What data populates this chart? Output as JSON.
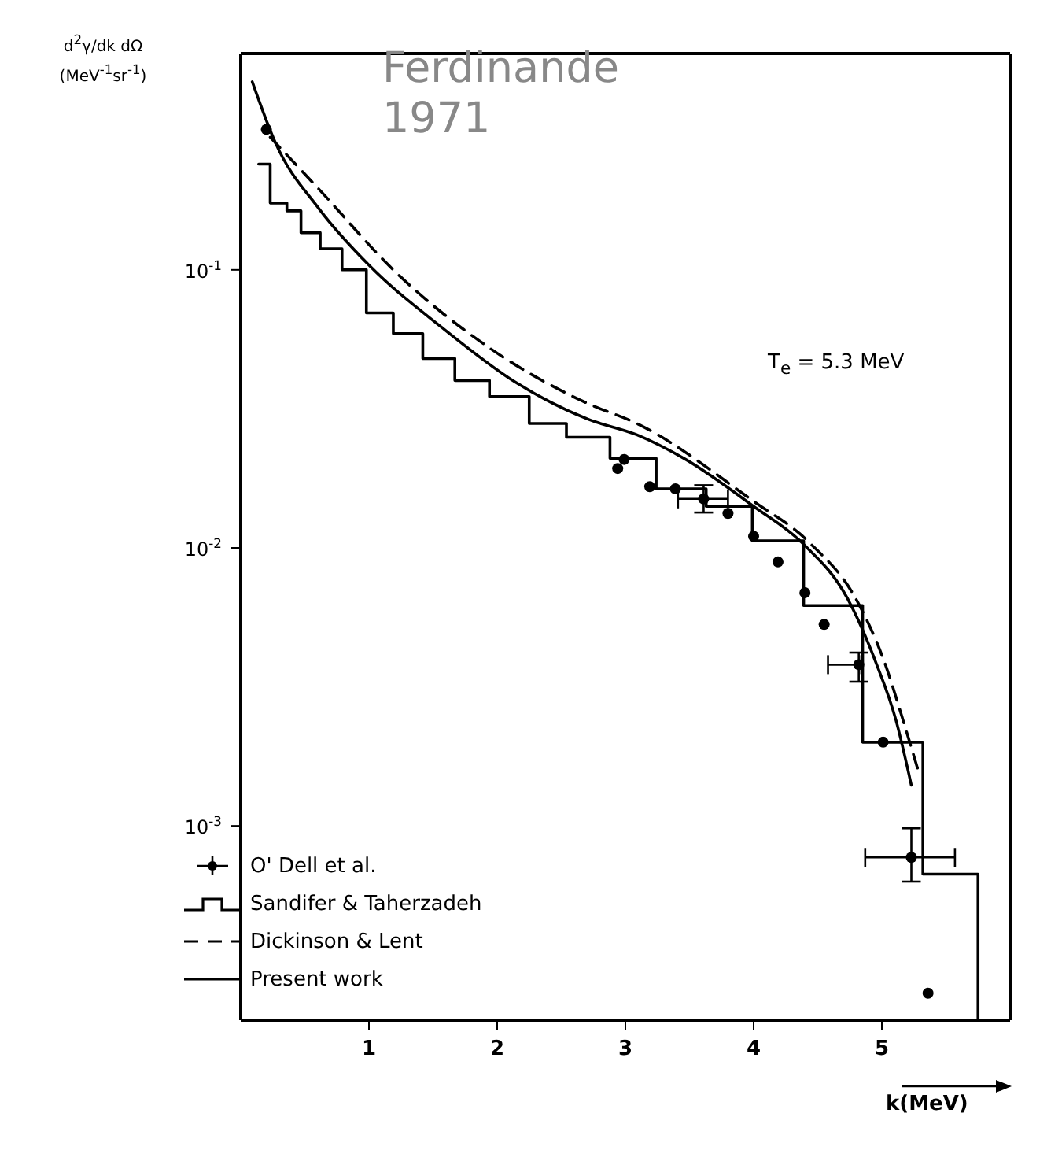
{
  "chart_data": {
    "type": "line",
    "xlabel": "k(MeV)",
    "ylabel": "d$^{2}$γ/dk dΩ (MeV$^{-1}$sr$^{-1}$)",
    "annotations": [
      "Ferdinande 1971",
      "T$_{e}$ = 5.3 MeV"
    ],
    "xlim": [
      0,
      6
    ],
    "xticks": [
      1,
      2,
      3,
      4,
      5
    ],
    "ylim": [
      0.0002,
      0.6
    ],
    "yticks": [
      {
        "value": 0.001,
        "label": "10$^{-3}$"
      },
      {
        "value": 0.01,
        "label": "10$^{-2}$"
      },
      {
        "value": 0.1,
        "label": "10$^{-1}$"
      }
    ],
    "log": "y",
    "legend": "bottom left",
    "series": [
      {
        "name": "O' Dell et al.",
        "type": "scatter",
        "color": "#000000",
        "marker": "circle",
        "x": [
          0.2,
          2.94,
          2.99,
          3.19,
          3.39,
          3.61,
          3.8,
          4.0,
          4.19,
          4.4,
          4.55,
          4.82,
          5.01,
          5.23,
          5.36
        ],
        "values": [
          0.32,
          0.0193,
          0.0208,
          0.0166,
          0.0163,
          0.015,
          0.0133,
          0.011,
          0.0089,
          0.0069,
          0.0053,
          0.0038,
          0.002,
          0.00077,
          0.00025
        ],
        "errors": [
          null,
          null,
          null,
          null,
          null,
          [
            0.0134,
            0.0168
          ],
          null,
          null,
          null,
          null,
          null,
          [
            0.0033,
            0.0042
          ],
          null,
          [
            0.00063,
            0.00098
          ],
          null
        ],
        "xerrors": [
          null,
          null,
          null,
          null,
          null,
          [
            3.41,
            3.8
          ],
          null,
          null,
          null,
          null,
          null,
          [
            4.58,
            4.84
          ],
          null,
          [
            4.87,
            5.57
          ],
          null
        ]
      },
      {
        "name": "Sandifer &  Taherzadeh",
        "type": "step",
        "color": "#000000",
        "marker": "none",
        "line_style": "solid",
        "x": [
          0.14,
          0.23,
          0.36,
          0.47,
          0.62,
          0.79,
          0.98,
          1.19,
          1.42,
          1.67,
          1.94,
          2.25,
          2.54,
          2.88,
          3.24,
          3.63,
          3.99,
          4.39,
          4.85,
          5.32,
          5.75
        ],
        "values": [
          0.24,
          0.174,
          0.163,
          0.136,
          0.119,
          0.1,
          0.07,
          0.059,
          0.048,
          0.04,
          0.035,
          0.028,
          0.025,
          0.021,
          0.0163,
          0.0141,
          0.0106,
          0.0062,
          0.002,
          0.00067,
          0.0002
        ]
      },
      {
        "name": "Dickinson & Lent",
        "type": "line",
        "color": "#000000",
        "marker": "none",
        "line_style": "dashed",
        "x": [
          0.23,
          0.61,
          1.19,
          1.95,
          2.71,
          3.09,
          4.0,
          4.43,
          4.81,
          5.01,
          5.19,
          5.28
        ],
        "values": [
          0.3,
          0.195,
          0.1,
          0.052,
          0.033,
          0.028,
          0.0147,
          0.0105,
          0.0064,
          0.004,
          0.0022,
          0.0016
        ]
      },
      {
        "name": "Present work",
        "color": "#000000",
        "marker": "none",
        "line_style": "solid",
        "x": [
          0.09,
          0.27,
          0.61,
          1.0,
          1.57,
          2.14,
          2.71,
          3.09,
          3.47,
          4.0,
          4.39,
          4.73,
          4.96,
          5.11,
          5.23
        ],
        "values": [
          0.475,
          0.287,
          0.166,
          0.104,
          0.062,
          0.0395,
          0.029,
          0.0255,
          0.0208,
          0.0141,
          0.0103,
          0.0066,
          0.0038,
          0.0024,
          0.0014
        ]
      }
    ]
  }
}
